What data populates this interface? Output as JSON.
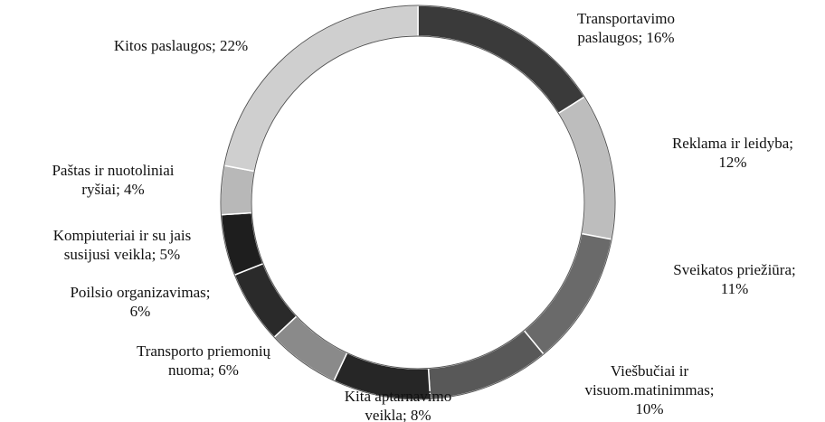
{
  "chart_data": {
    "type": "donut",
    "labels": [
      [
        "Transportavimo",
        "paslaugos; 16%"
      ],
      [
        "Reklama ir leidyba;",
        "12%"
      ],
      [
        "Sveikatos priežiūra;",
        "11%"
      ],
      [
        "Viešbučiai ir",
        "visuom.matinimmas;",
        "10%"
      ],
      [
        "Kita aptarnavimo",
        "veikla; 8%"
      ],
      [
        "Transporto priemonių",
        "nuoma; 6%"
      ],
      [
        "Poilsio organizavimas;",
        "6%"
      ],
      [
        "Kompiuteriai ir su jais",
        "susijusi veikla; 5%"
      ],
      [
        "Paštas ir nuotoliniai",
        "ryšiai; 4%"
      ],
      [
        "Kitos paslaugos; 22%"
      ]
    ],
    "values": [
      16,
      12,
      11,
      10,
      8,
      6,
      6,
      5,
      4,
      22
    ],
    "colors": [
      "#3a3a3a",
      "#bdbdbd",
      "#6a6a6a",
      "#585858",
      "#262626",
      "#8a8a8a",
      "#2a2a2a",
      "#1e1e1e",
      "#b8b8b8",
      "#cfcfcf"
    ]
  }
}
